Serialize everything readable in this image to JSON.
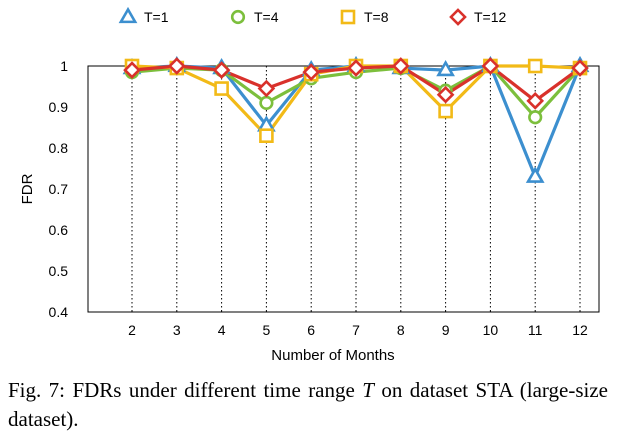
{
  "chart_data": {
    "type": "line",
    "xlabel": "Number of Months",
    "ylabel": "FDR",
    "x": [
      2,
      3,
      4,
      5,
      6,
      7,
      8,
      9,
      10,
      11,
      12
    ],
    "ylim": [
      0.4,
      1.0
    ],
    "yticks": [
      0.4,
      0.5,
      0.6,
      0.7,
      0.8,
      0.9,
      1
    ],
    "legend_position": "top",
    "grid": "dotted vertical lines at each x tick",
    "series": [
      {
        "name": "T=1",
        "color": "#3c8fcf",
        "marker": "triangle",
        "values": [
          0.995,
          1.0,
          0.995,
          0.855,
          0.99,
          1.0,
          0.995,
          0.99,
          1.0,
          0.73,
          1.0
        ]
      },
      {
        "name": "T=4",
        "color": "#7cbf3c",
        "marker": "circle",
        "values": [
          0.985,
          0.995,
          0.99,
          0.91,
          0.97,
          0.985,
          0.995,
          0.94,
          1.0,
          0.875,
          0.995
        ]
      },
      {
        "name": "T=8",
        "color": "#f2ba17",
        "marker": "square",
        "values": [
          1.0,
          0.995,
          0.945,
          0.83,
          0.98,
          1.0,
          1.0,
          0.89,
          1.0,
          1.0,
          0.995
        ]
      },
      {
        "name": "T=12",
        "color": "#d9312b",
        "marker": "diamond",
        "values": [
          0.99,
          1.0,
          0.99,
          0.945,
          0.985,
          0.995,
          1.0,
          0.93,
          1.0,
          0.915,
          0.995
        ]
      }
    ]
  },
  "caption": {
    "label": "Fig. 7: FDRs under different time range",
    "symbol": "T",
    "rest": "on dataset STA (large-size dataset)."
  }
}
